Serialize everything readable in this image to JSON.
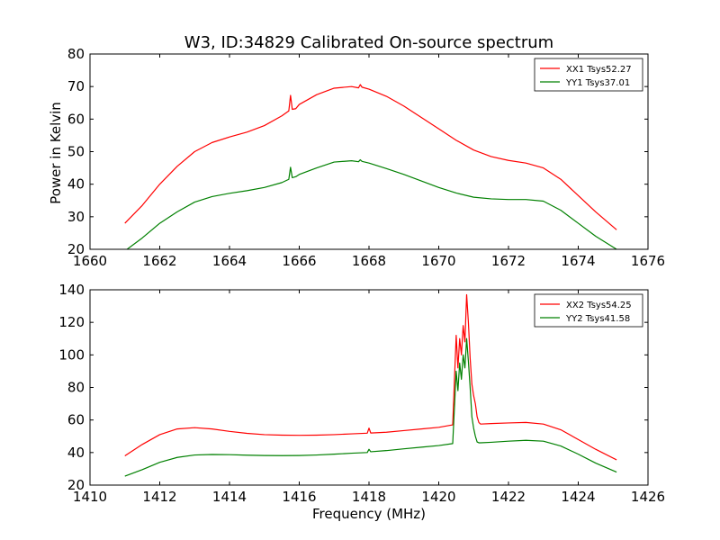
{
  "figure": {
    "title": "W3, ID:34829 Calibrated On-source spectrum",
    "ylabel": "Power in Kelvin",
    "xlabel": "Frequency (MHz)"
  },
  "chart_data": [
    {
      "type": "line",
      "xlim": [
        1660,
        1676
      ],
      "ylim": [
        20,
        80
      ],
      "xticks": [
        1660,
        1662,
        1664,
        1666,
        1668,
        1670,
        1672,
        1674,
        1676
      ],
      "yticks": [
        20,
        30,
        40,
        50,
        60,
        70,
        80
      ],
      "legend": "top-right",
      "series": [
        {
          "name": "XX1 Tsys52.27",
          "color": "#ff0000",
          "x": [
            1661.0,
            1661.5,
            1662.0,
            1662.5,
            1663.0,
            1663.5,
            1664.0,
            1664.5,
            1665.0,
            1665.5,
            1665.7,
            1665.75,
            1665.8,
            1665.9,
            1666.0,
            1666.5,
            1667.0,
            1667.5,
            1667.7,
            1667.75,
            1667.8,
            1668.0,
            1668.5,
            1669.0,
            1669.5,
            1670.0,
            1670.5,
            1671.0,
            1671.5,
            1672.0,
            1672.5,
            1673.0,
            1673.5,
            1674.0,
            1674.5,
            1675.1
          ],
          "y": [
            28.0,
            33.5,
            40.0,
            45.5,
            50.0,
            52.8,
            54.5,
            56.0,
            58.0,
            61.0,
            62.5,
            67.3,
            63.0,
            63.2,
            64.5,
            67.5,
            69.5,
            70.0,
            69.6,
            70.6,
            69.8,
            69.2,
            67.0,
            64.0,
            60.5,
            57.0,
            53.5,
            50.5,
            48.5,
            47.3,
            46.5,
            45.0,
            41.5,
            36.5,
            31.5,
            26.0
          ]
        },
        {
          "name": "YY1 Tsys37.01",
          "color": "#008000",
          "x": [
            1661.0,
            1661.5,
            1662.0,
            1662.5,
            1663.0,
            1663.5,
            1664.0,
            1664.5,
            1665.0,
            1665.5,
            1665.7,
            1665.75,
            1665.8,
            1665.9,
            1666.0,
            1666.5,
            1667.0,
            1667.5,
            1667.7,
            1667.75,
            1667.8,
            1668.0,
            1668.5,
            1669.0,
            1669.5,
            1670.0,
            1670.5,
            1671.0,
            1671.5,
            1672.0,
            1672.5,
            1673.0,
            1673.5,
            1674.0,
            1674.5,
            1675.1
          ],
          "y": [
            19.5,
            23.5,
            28.0,
            31.5,
            34.5,
            36.2,
            37.2,
            38.0,
            39.0,
            40.5,
            41.5,
            45.2,
            42.0,
            42.3,
            43.0,
            45.0,
            46.8,
            47.2,
            46.9,
            47.5,
            47.0,
            46.5,
            44.8,
            43.0,
            41.0,
            39.0,
            37.3,
            36.0,
            35.5,
            35.3,
            35.3,
            34.8,
            32.0,
            28.0,
            24.0,
            20.0
          ]
        }
      ]
    },
    {
      "type": "line",
      "xlim": [
        1410,
        1426
      ],
      "ylim": [
        20,
        140
      ],
      "xticks": [
        1410,
        1412,
        1414,
        1416,
        1418,
        1420,
        1422,
        1424,
        1426
      ],
      "yticks": [
        20,
        40,
        60,
        80,
        100,
        120,
        140
      ],
      "legend": "top-right",
      "series": [
        {
          "name": "XX2 Tsys54.25",
          "color": "#ff0000",
          "x": [
            1411.0,
            1411.5,
            1412.0,
            1412.5,
            1413.0,
            1413.5,
            1414.0,
            1414.5,
            1415.0,
            1415.5,
            1416.0,
            1416.5,
            1417.0,
            1417.5,
            1417.95,
            1418.0,
            1418.05,
            1418.5,
            1419.0,
            1419.5,
            1420.0,
            1420.4,
            1420.5,
            1420.55,
            1420.6,
            1420.65,
            1420.7,
            1420.75,
            1420.8,
            1420.85,
            1420.9,
            1420.95,
            1421.0,
            1421.05,
            1421.1,
            1421.15,
            1421.2,
            1421.5,
            1422.0,
            1422.5,
            1423.0,
            1423.5,
            1424.0,
            1424.5,
            1425.1
          ],
          "y": [
            38.0,
            45.0,
            51.0,
            54.5,
            55.3,
            54.5,
            53.0,
            51.8,
            51.0,
            50.7,
            50.6,
            50.7,
            51.0,
            51.5,
            51.9,
            55.0,
            52.0,
            52.5,
            53.5,
            54.5,
            55.5,
            57.0,
            112.0,
            92.0,
            110.0,
            100.0,
            118.0,
            108.0,
            137.0,
            120.0,
            98.0,
            82.0,
            75.0,
            70.0,
            62.0,
            58.5,
            57.5,
            57.8,
            58.2,
            58.5,
            57.5,
            54.0,
            48.0,
            42.0,
            35.5
          ]
        },
        {
          "name": "YY2 Tsys41.58",
          "color": "#008000",
          "x": [
            1411.0,
            1411.5,
            1412.0,
            1412.5,
            1413.0,
            1413.5,
            1414.0,
            1414.5,
            1415.0,
            1415.5,
            1416.0,
            1416.5,
            1417.0,
            1417.5,
            1417.95,
            1418.0,
            1418.05,
            1418.5,
            1419.0,
            1419.5,
            1420.0,
            1420.4,
            1420.5,
            1420.55,
            1420.6,
            1420.65,
            1420.7,
            1420.75,
            1420.8,
            1420.85,
            1420.9,
            1420.95,
            1421.0,
            1421.05,
            1421.1,
            1421.15,
            1421.2,
            1421.5,
            1422.0,
            1422.5,
            1423.0,
            1423.5,
            1424.0,
            1424.5,
            1425.1
          ],
          "y": [
            25.5,
            29.5,
            34.0,
            37.0,
            38.5,
            38.8,
            38.7,
            38.4,
            38.2,
            38.1,
            38.2,
            38.5,
            39.0,
            39.6,
            40.0,
            42.0,
            40.5,
            41.2,
            42.3,
            43.3,
            44.3,
            45.5,
            90.0,
            78.0,
            95.0,
            85.0,
            100.0,
            92.0,
            110.0,
            96.0,
            80.0,
            62.0,
            55.0,
            50.0,
            46.5,
            46.0,
            46.0,
            46.3,
            47.0,
            47.5,
            47.0,
            44.0,
            39.0,
            33.5,
            28.0
          ]
        }
      ]
    }
  ]
}
